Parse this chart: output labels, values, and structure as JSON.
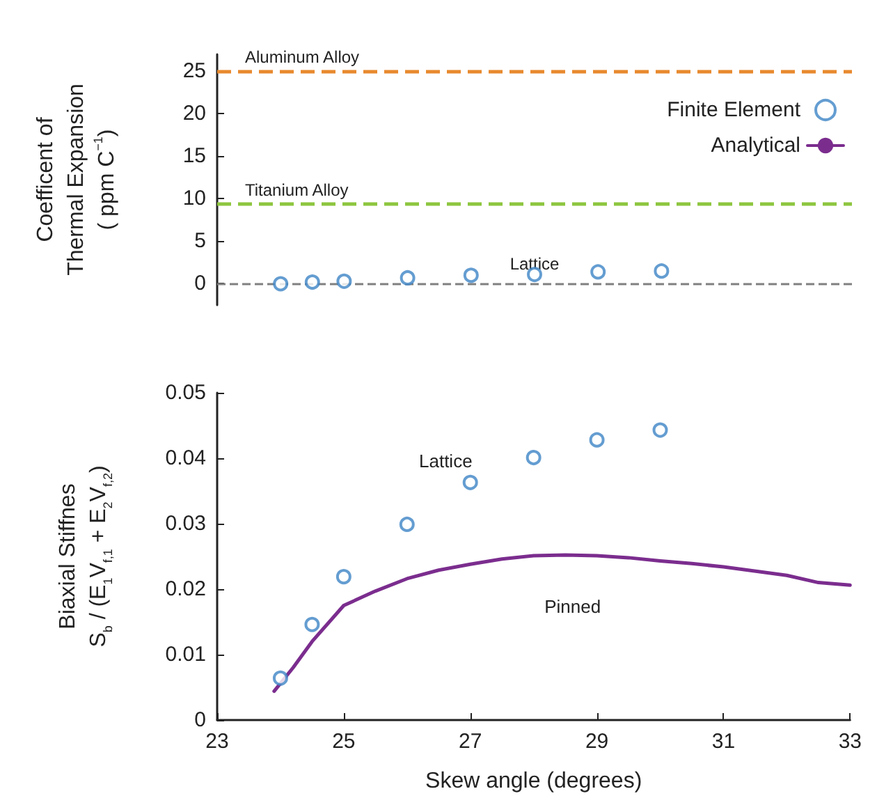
{
  "chart_data": [
    {
      "type": "scatter",
      "ylabel": "Coefficent of\nThermal Expansion\n( ppm C$^{−1}$)",
      "xlim": [
        23,
        33
      ],
      "ylim": [
        -2.5,
        27
      ],
      "yticks": [
        0,
        5,
        10,
        15,
        20,
        25
      ],
      "tick_labels": "y",
      "grid": false,
      "marker": "circle",
      "legend": "right",
      "series": [
        {
          "name": "Finite Element",
          "color": "#3d85c6",
          "x": [
            24,
            24.5,
            25,
            26,
            27,
            28,
            29,
            30
          ],
          "values": [
            0,
            0.2,
            0.3,
            0.7,
            1.0,
            1.1,
            1.4,
            1.5
          ]
        }
      ],
      "ref_lines": [
        {
          "axis": "y",
          "value": 25,
          "label": "Aluminum Alloy",
          "color": "#e8892e",
          "line_style": "dashed"
        },
        {
          "axis": "y",
          "value": 9.4,
          "label": "Titanium Alloy",
          "color": "#8dc63f",
          "line_style": "dashed"
        },
        {
          "axis": "y",
          "value": 0,
          "label": "Lattice",
          "color": "#808080",
          "line_style": "dashed"
        }
      ]
    },
    {
      "type": "scatter",
      "xlabel": "Skew angle (degrees)",
      "ylabel": "Biaxial Stiffnes\nS$_{b}$ / (E$_{1}$V$_{f,1}$ + E$_{2}$V$_{f,2}$)",
      "xlim": [
        23,
        33
      ],
      "xticks": [
        23,
        25,
        27,
        29,
        31,
        33
      ],
      "ylim": [
        0,
        0.05
      ],
      "yticks": [
        0,
        0.01,
        0.02,
        0.03,
        0.04,
        0.05
      ],
      "grid": false,
      "marker": "circle",
      "legend": "right",
      "series": [
        {
          "name": "Finite Element",
          "color": "#3d85c6",
          "x": [
            24,
            24.5,
            25,
            26,
            27,
            28,
            29,
            30
          ],
          "values": [
            0.0064,
            0.0146,
            0.0219,
            0.0299,
            0.0363,
            0.0401,
            0.0428,
            0.0443
          ]
        },
        {
          "name": "Analytical",
          "type": "line",
          "marker": "none",
          "color": "#7b2d8e",
          "x": [
            23.9,
            24.2,
            24.5,
            25,
            25.5,
            26,
            26.5,
            27,
            27.5,
            28,
            28.5,
            29,
            29.5,
            30,
            30.5,
            31,
            32,
            32.5,
            33
          ],
          "values": [
            0.0044,
            0.008,
            0.012,
            0.0175,
            0.0197,
            0.0216,
            0.0229,
            0.0238,
            0.0246,
            0.0251,
            0.0252,
            0.0251,
            0.0248,
            0.0243,
            0.0239,
            0.0234,
            0.0221,
            0.021,
            0.0206
          ]
        }
      ],
      "annotations": [
        "Lattice",
        "Pinned"
      ]
    }
  ]
}
